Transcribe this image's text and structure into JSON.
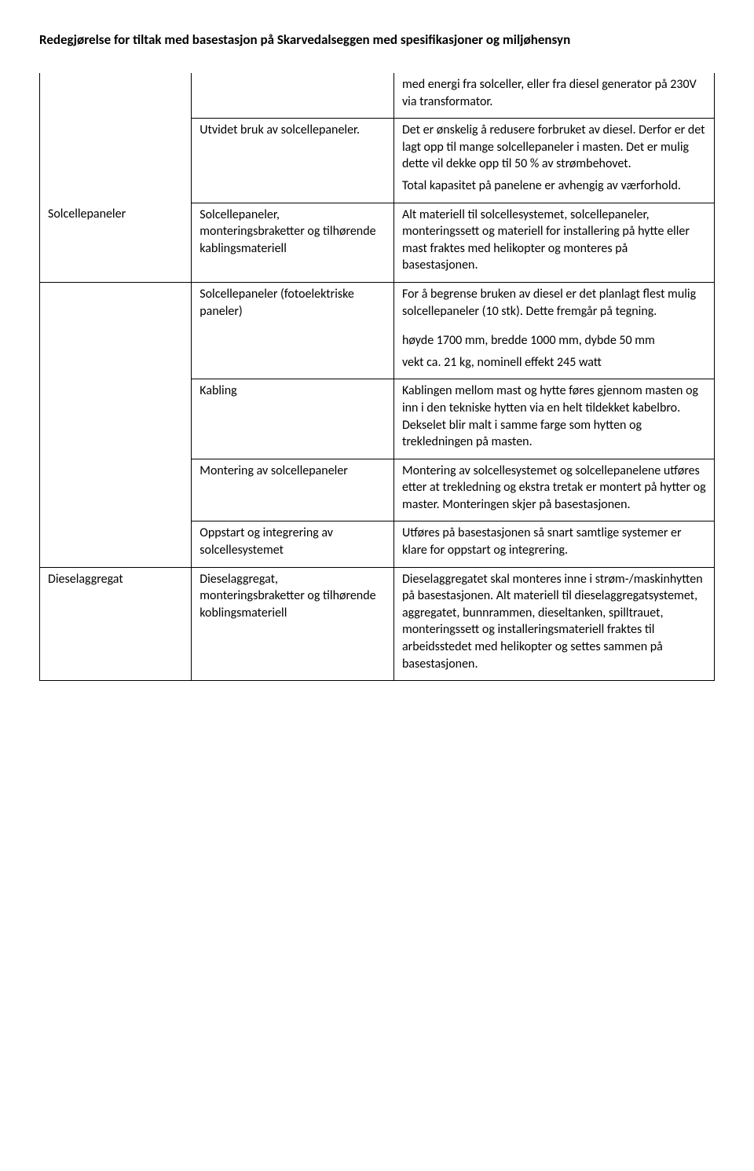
{
  "page_title": "Redegjørelse for tiltak med basestasjon på Skarvedalseggen med spesifikasjoner og miljøhensyn",
  "colors": {
    "text": "#000000",
    "background": "#ffffff",
    "border": "#000000"
  },
  "typography": {
    "body_fontsize_pt": 12,
    "title_fontsize_pt": 13,
    "title_weight": "bold",
    "font_family": "Calibri"
  },
  "table": {
    "type": "table",
    "columns": [
      {
        "key": "col1",
        "width_pct": 22.5
      },
      {
        "key": "col2",
        "width_pct": 30.0
      },
      {
        "key": "col3",
        "width_pct": 47.5
      }
    ],
    "rows": [
      {
        "id": "r0",
        "col1": "",
        "col2": "",
        "col3": "med energi fra solceller, eller fra diesel generator på 230V via transformator.",
        "border": {
          "col1_top": false,
          "col2_top": false,
          "col3_top": false,
          "col1_bottom": false
        }
      },
      {
        "id": "r1",
        "col1": "",
        "col2": "Utvidet bruk av solcellepaneler.",
        "col3_paras": [
          "Det er ønskelig å redusere forbruket av diesel. Derfor er det lagt opp til mange solcellepaneler i masten. Det er mulig dette vil dekke opp til 50 % av strømbehovet.",
          "Total kapasitet på panelene er avhengig av værforhold."
        ],
        "border": {
          "col1_top": false,
          "col1_bottom": false
        }
      },
      {
        "id": "r2",
        "col1": "Solcellepaneler",
        "col2": "Solcellepaneler, monteringsbraketter og tilhørende kablingsmateriell",
        "col3": "Alt materiell til solcellesystemet, solcellepaneler, monteringssett og materiell for installering på hytte eller mast fraktes med helikopter og monteres på basestasjonen.",
        "border": {
          "col1_top": false
        }
      },
      {
        "id": "r3",
        "col1": "",
        "col2": "Solcellepaneler (fotoelektriske paneler)",
        "col3_paras": [
          "For å begrense bruken av diesel er det planlagt flest mulig solcellepaneler (10 stk). Dette fremgår på tegning.",
          "høyde 1700 mm, bredde 1000 mm, dybde 50 mm",
          "vekt ca. 21 kg, nominell effekt 245 watt"
        ],
        "border": {
          "col1_bottom": false
        }
      },
      {
        "id": "r4",
        "col1": "",
        "col2": "Kabling",
        "col3": "Kablingen mellom mast og hytte føres gjennom masten og inn i den tekniske hytten via en helt tildekket kabelbro. Dekselet blir malt i samme farge som hytten og trekledningen på masten.",
        "border": {
          "col1_top": false,
          "col1_bottom": false
        }
      },
      {
        "id": "r5",
        "col1": "",
        "col2": "Montering av solcellepaneler",
        "col3": "Montering av solcellesystemet og solcellepanelene utføres etter at trekledning og ekstra tretak er montert på hytter og master. Monteringen skjer på basestasjonen.",
        "border": {
          "col1_top": false,
          "col1_bottom": false
        }
      },
      {
        "id": "r6",
        "col1": "",
        "col2": "Oppstart og integrering av solcellesystemet",
        "col3": "Utføres på basestasjonen så snart samtlige systemer er klare for oppstart og integrering.",
        "border": {
          "col1_top": false
        }
      },
      {
        "id": "r7",
        "col1": "Dieselaggregat",
        "col2": "Dieselaggregat, monteringsbraketter og tilhørende koblingsmateriell",
        "col3": "Dieselaggregatet skal monteres inne i strøm-/maskinhytten på basestasjonen. Alt materiell til dieselaggregatsystemet, aggregatet, bunnrammen, dieseltanken, spilltrauet, monteringssett og installeringsmateriell fraktes til arbeidsstedet med helikopter og settes sammen på basestasjonen.",
        "border": {}
      }
    ]
  }
}
